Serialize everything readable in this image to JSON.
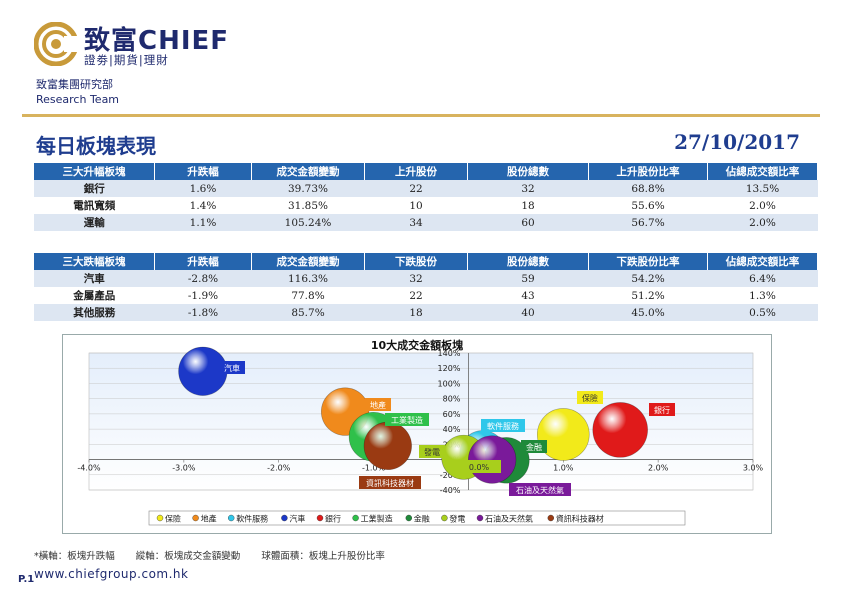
{
  "header": {
    "brand_cn": "致富",
    "brand_en": "CHIEF",
    "brand_sub": "證劵|期貨|理財",
    "dept_cn": "致富集團研究部",
    "dept_en": "Research Team"
  },
  "report": {
    "title": "每日板塊表現",
    "date": "27/10/2017"
  },
  "up_table": {
    "headers": [
      "三大升幅板塊",
      "升跌幅",
      "成交金額變動",
      "上升股份",
      "股份總數",
      "上升股份比率",
      "佔總成交額比率"
    ],
    "rows": [
      [
        "銀行",
        "1.6%",
        "39.73%",
        "22",
        "32",
        "68.8%",
        "13.5%"
      ],
      [
        "電訊寬頻",
        "1.4%",
        "31.85%",
        "10",
        "18",
        "55.6%",
        "2.0%"
      ],
      [
        "運輸",
        "1.1%",
        "105.24%",
        "34",
        "60",
        "56.7%",
        "2.0%"
      ]
    ]
  },
  "down_table": {
    "headers": [
      "三大跌幅板塊",
      "升跌幅",
      "成交金額變動",
      "下跌股份",
      "股份總數",
      "下跌股份比率",
      "佔總成交額比率"
    ],
    "rows": [
      [
        "汽車",
        "-2.8%",
        "116.3%",
        "32",
        "59",
        "54.2%",
        "6.4%"
      ],
      [
        "金屬產品",
        "-1.9%",
        "77.8%",
        "22",
        "43",
        "51.2%",
        "1.3%"
      ],
      [
        "其他服務",
        "-1.8%",
        "85.7%",
        "18",
        "40",
        "45.0%",
        "0.5%"
      ]
    ]
  },
  "chart_data": {
    "type": "scatter",
    "title": "10大成交金額板塊",
    "x_ticks": [
      "-4.0%",
      "-3.0%",
      "-2.0%",
      "-1.0%",
      "0.0%",
      "1.0%",
      "2.0%",
      "3.0%"
    ],
    "y_ticks": [
      "-40%",
      "-20%",
      "0%",
      "20%",
      "40%",
      "60%",
      "80%",
      "100%",
      "120%",
      "140%"
    ],
    "xlim": [
      -4.0,
      3.0
    ],
    "ylim": [
      -40,
      140
    ],
    "grid": true,
    "legend_position": "bottom",
    "series": [
      {
        "name": "保險",
        "x": 1.0,
        "y": 33,
        "size": 0.62,
        "color": "#f2ea1a"
      },
      {
        "name": "地產",
        "x": -1.3,
        "y": 63,
        "size": 0.52,
        "color": "#f08a1c"
      },
      {
        "name": "軟件服務",
        "x": 0.15,
        "y": 8,
        "size": 0.48,
        "color": "#2fc7ea"
      },
      {
        "name": "汽車",
        "x": -2.8,
        "y": 116,
        "size": 0.54,
        "color": "#1c38c8"
      },
      {
        "name": "銀行",
        "x": 1.6,
        "y": 39,
        "size": 0.69,
        "color": "#e01a1a"
      },
      {
        "name": "工業製造",
        "x": -1.0,
        "y": 30,
        "size": 0.55,
        "color": "#2fc04a"
      },
      {
        "name": "金融",
        "x": 0.4,
        "y": -1,
        "size": 0.48,
        "color": "#1f8a3a"
      },
      {
        "name": "發電",
        "x": -0.05,
        "y": 3,
        "size": 0.45,
        "color": "#a8cf1c"
      },
      {
        "name": "石油及天然氣",
        "x": 0.25,
        "y": 0,
        "size": 0.52,
        "color": "#7a1a9a"
      },
      {
        "name": "資訊科技器材",
        "x": -0.85,
        "y": 18,
        "size": 0.52,
        "color": "#9a3a12"
      }
    ],
    "labels": [
      {
        "text": "汽車",
        "bg": "#1c38c8",
        "fg": "#ffffff"
      },
      {
        "text": "地產",
        "bg": "#f08a1c",
        "fg": "#ffffff"
      },
      {
        "text": "工業製造",
        "bg": "#2fc04a",
        "fg": "#ffffff"
      },
      {
        "text": "發電",
        "bg": "#a8cf1c",
        "fg": "#333333"
      },
      {
        "text": "資訊科技器材",
        "bg": "#9a3a12",
        "fg": "#ffffff"
      },
      {
        "text": "0.0%",
        "bg": "#a8cf1c",
        "fg": "#333333"
      },
      {
        "text": "軟件服務",
        "bg": "#2fc7ea",
        "fg": "#ffffff"
      },
      {
        "text": "金融",
        "bg": "#1f8a3a",
        "fg": "#ffffff"
      },
      {
        "text": "石油及天然氣",
        "bg": "#7a1a9a",
        "fg": "#ffffff"
      },
      {
        "text": "保險",
        "bg": "#f2ea1a",
        "fg": "#333333"
      },
      {
        "text": "銀行",
        "bg": "#e01a1a",
        "fg": "#ffffff"
      }
    ]
  },
  "footnote": {
    "x_axis_note": "*橫軸：板塊升跌幅",
    "y_axis_note": "縱軸：板塊成交金額變動",
    "size_note": "球體面積：板塊上升股份比率"
  },
  "footer": {
    "page": "P.1",
    "url": "www.chiefgroup.com.hk"
  }
}
